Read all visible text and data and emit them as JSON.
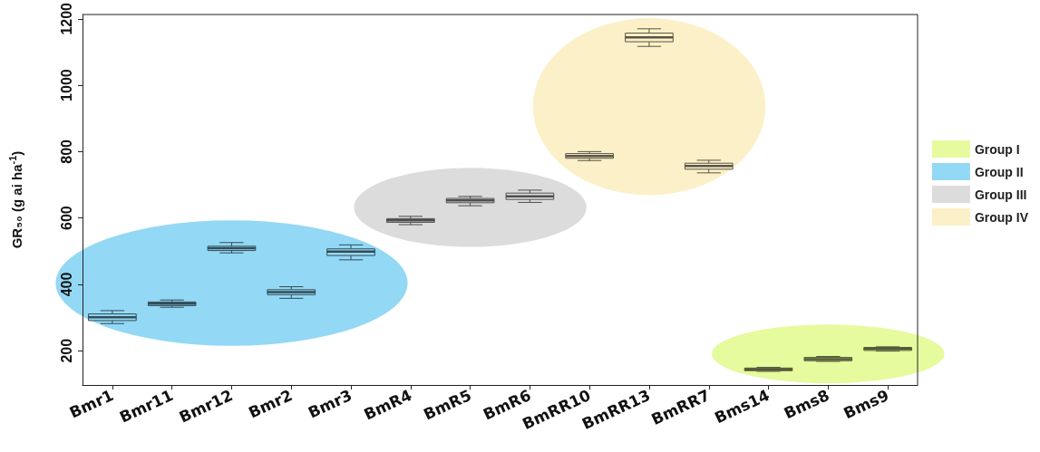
{
  "chart_data": {
    "type": "box",
    "ylabel": "GR₅₀ (g ai ha$^{-1}$)",
    "categories": [
      "Bmr1",
      "Bmr11",
      "Bmr12",
      "Bmr2",
      "Bmr3",
      "BmR4",
      "BmR5",
      "BmR6",
      "BmRR10",
      "BmRR13",
      "BmRR7",
      "Bms14",
      "Bms8",
      "Bms9"
    ],
    "ylim": [
      97,
      1213
    ],
    "yticks": [
      200,
      400,
      600,
      800,
      1000,
      1200
    ],
    "grid": false,
    "legend": "right",
    "series": [
      {
        "name": "Group I",
        "color": "#e6fa9e",
        "boxes": [
          null,
          null,
          null,
          null,
          null,
          null,
          null,
          null,
          null,
          null,
          null,
          {
            "low": 138,
            "q1": 140,
            "median": 144,
            "q3": 148,
            "high": 150
          },
          {
            "low": 168,
            "q1": 170,
            "median": 175,
            "q3": 180,
            "high": 183
          },
          {
            "low": 199,
            "q1": 201,
            "median": 206,
            "q3": 210,
            "high": 212
          }
        ]
      },
      {
        "name": "Group II",
        "color": "#93d8f5",
        "boxes": [
          {
            "low": 282,
            "q1": 291,
            "median": 301,
            "q3": 311,
            "high": 321
          },
          {
            "low": 331,
            "q1": 336,
            "median": 342,
            "q3": 347,
            "high": 353
          },
          {
            "low": 495,
            "q1": 502,
            "median": 509,
            "q3": 515,
            "high": 526
          },
          {
            "low": 358,
            "q1": 369,
            "median": 377,
            "q3": 384,
            "high": 393
          },
          {
            "low": 474,
            "q1": 487,
            "median": 499,
            "q3": 507,
            "high": 519
          },
          null,
          null,
          null,
          null,
          null,
          null,
          null,
          null,
          null
        ]
      },
      {
        "name": "Group III",
        "color": "#dcdcdc",
        "boxes": [
          null,
          null,
          null,
          null,
          null,
          {
            "low": 580,
            "q1": 587,
            "median": 593,
            "q3": 598,
            "high": 605
          },
          {
            "low": 637,
            "q1": 646,
            "median": 653,
            "q3": 659,
            "high": 665
          },
          {
            "low": 647,
            "q1": 656,
            "median": 665,
            "q3": 675,
            "high": 684
          },
          null,
          null,
          null,
          null,
          null,
          null
        ]
      },
      {
        "name": "Group IV",
        "color": "#fbf0c8",
        "boxes": [
          null,
          null,
          null,
          null,
          null,
          null,
          null,
          null,
          {
            "low": 773,
            "q1": 780,
            "median": 787,
            "q3": 794,
            "high": 800
          },
          {
            "low": 1117,
            "q1": 1131,
            "median": 1144,
            "q3": 1157,
            "high": 1170
          },
          {
            "low": 736,
            "q1": 747,
            "median": 757,
            "q3": 765,
            "high": 774
          },
          null,
          null,
          null
        ]
      }
    ]
  }
}
